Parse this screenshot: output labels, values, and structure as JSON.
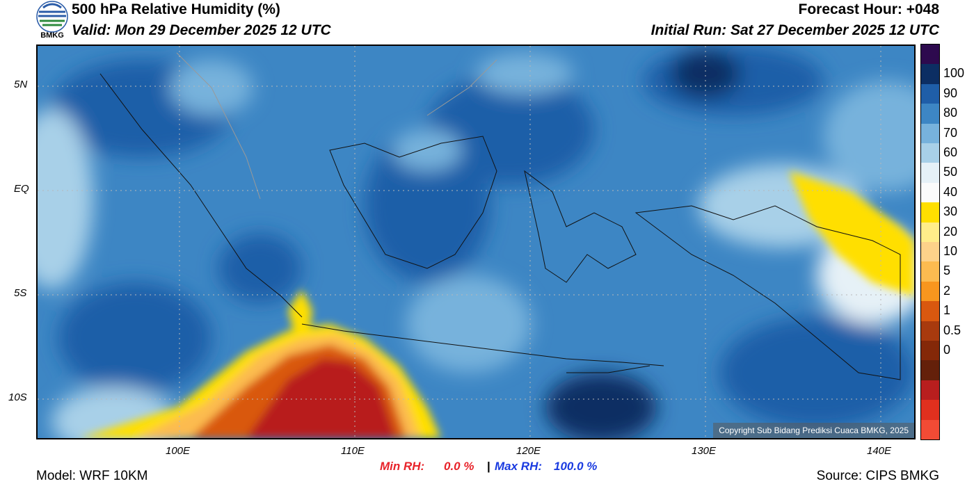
{
  "header": {
    "title": "500 hPa Relative Humidity (%)",
    "valid": "Valid: Mon 29 December 2025 12 UTC",
    "forecast_hour": "Forecast Hour: +048",
    "initial_run": "Initial Run: Sat 27 December 2025 12 UTC",
    "logo_text": "BMKG"
  },
  "axes": {
    "lat_labels": [
      "5N",
      "EQ",
      "5S",
      "10S"
    ],
    "lon_labels": [
      "100E",
      "110E",
      "120E",
      "130E",
      "140E"
    ]
  },
  "colorbar": {
    "labels": [
      "100",
      "90",
      "80",
      "70",
      "60",
      "50",
      "40",
      "30",
      "20",
      "10",
      "5",
      "2",
      "1",
      "0.5",
      "0"
    ],
    "colors": [
      "#2d0a4e",
      "#0c2e63",
      "#1f5ea8",
      "#3d86c4",
      "#77b2dc",
      "#a8d0e8",
      "#e6f1f7",
      "#fbfbfb",
      "#ffdf00",
      "#ffed8a",
      "#fdd28a",
      "#fcbb50",
      "#f8961e",
      "#d9580f",
      "#a83a0e",
      "#842808",
      "#64200a",
      "#b81e1e",
      "#e0301e",
      "#f24b35"
    ]
  },
  "stats": {
    "min_label": "Min RH:",
    "min_value": "0.0 %",
    "separator": "|",
    "max_label": "Max RH:",
    "max_value": "100.0 %"
  },
  "footer": {
    "model": "Model: WRF 10KM",
    "source": "Source: CIPS BMKG"
  },
  "copyright": "Copyright Sub Bidang Prediksi Cuaca BMKG, 2025",
  "colors": {
    "min_red": "#e8232a",
    "max_blue": "#1a3be0"
  }
}
